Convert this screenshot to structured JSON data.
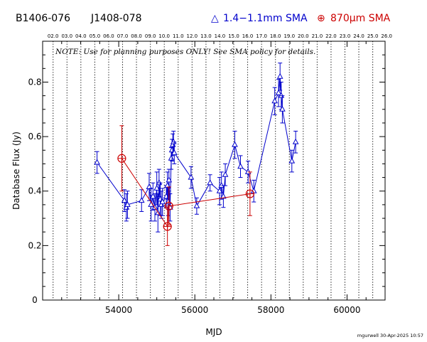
{
  "header": {
    "source1": "B1406-076",
    "source2": "J1408-078",
    "legend_blue_marker": "△",
    "legend_blue_text": "1.4−1.1mm SMA",
    "legend_red_marker": "⊕",
    "legend_red_text": "870μm SMA"
  },
  "note": "NOTE: Use for planning purposes ONLY!  See SMA policy for details.",
  "credit": "mgurwell 30-Apr-2025 10:57",
  "colors": {
    "blue": "#0000cc",
    "red": "#cc0000",
    "axis": "#000000"
  },
  "chart_data": {
    "type": "scatter",
    "xlabel": "MJD",
    "ylabel": "Database Flux (Jy)",
    "xlim": [
      52000,
      61000
    ],
    "ylim": [
      0,
      0.95
    ],
    "xticks": [
      54000,
      56000,
      58000,
      60000
    ],
    "yticks": [
      0,
      0.2,
      0.4,
      0.6,
      0.8
    ],
    "year_axis": {
      "labels": [
        "02.0",
        "03.0",
        "04.0",
        "05.0",
        "06.0",
        "07.0",
        "08.0",
        "09.0",
        "10.0",
        "11.0",
        "12.0",
        "13.0",
        "14.0",
        "15.0",
        "16.0",
        "17.0",
        "18.0",
        "19.0",
        "20.0",
        "21.0",
        "22.0",
        "23.0",
        "24.0",
        "25.0",
        "26.0"
      ],
      "mjd": [
        52275,
        52640,
        53005,
        53371,
        53736,
        54101,
        54466,
        54832,
        55197,
        55562,
        55927,
        56293,
        56658,
        57023,
        57388,
        57754,
        58119,
        58484,
        58849,
        59215,
        59580,
        59945,
        60310,
        60676,
        61041
      ]
    },
    "series": [
      {
        "name": "1.4−1.1mm SMA",
        "marker": "triangle",
        "x": [
          53430,
          54150,
          54200,
          54230,
          54600,
          54800,
          54850,
          54900,
          54950,
          55000,
          55030,
          55060,
          55090,
          55120,
          55150,
          55250,
          55280,
          55300,
          55320,
          55350,
          55380,
          55400,
          55420,
          55440,
          55460,
          55900,
          56050,
          56400,
          56650,
          56700,
          56750,
          56800,
          57050,
          57200,
          57400,
          57550,
          58100,
          58200,
          58240,
          58270,
          58300,
          58550,
          58650
        ],
        "y": [
          0.505,
          0.365,
          0.34,
          0.35,
          0.365,
          0.415,
          0.35,
          0.38,
          0.34,
          0.41,
          0.32,
          0.43,
          0.37,
          0.35,
          0.36,
          0.38,
          0.42,
          0.36,
          0.44,
          0.34,
          0.52,
          0.55,
          0.57,
          0.58,
          0.54,
          0.45,
          0.345,
          0.43,
          0.4,
          0.42,
          0.38,
          0.46,
          0.57,
          0.49,
          0.47,
          0.4,
          0.73,
          0.76,
          0.82,
          0.75,
          0.7,
          0.51,
          0.58
        ],
        "err": [
          0.04,
          0.04,
          0.05,
          0.05,
          0.04,
          0.05,
          0.06,
          0.05,
          0.05,
          0.06,
          0.07,
          0.05,
          0.06,
          0.05,
          0.05,
          0.04,
          0.05,
          0.05,
          0.04,
          0.05,
          0.04,
          0.04,
          0.04,
          0.04,
          0.04,
          0.04,
          0.03,
          0.03,
          0.05,
          0.05,
          0.04,
          0.04,
          0.05,
          0.04,
          0.04,
          0.04,
          0.05,
          0.05,
          0.05,
          0.05,
          0.05,
          0.04,
          0.04
        ]
      },
      {
        "name": "870μm SMA",
        "marker": "circle-plus",
        "x": [
          54080,
          55280,
          55320,
          57450
        ],
        "y": [
          0.52,
          0.27,
          0.345,
          0.39
        ],
        "err": [
          0.12,
          0.07,
          0.07,
          0.08
        ]
      }
    ]
  }
}
